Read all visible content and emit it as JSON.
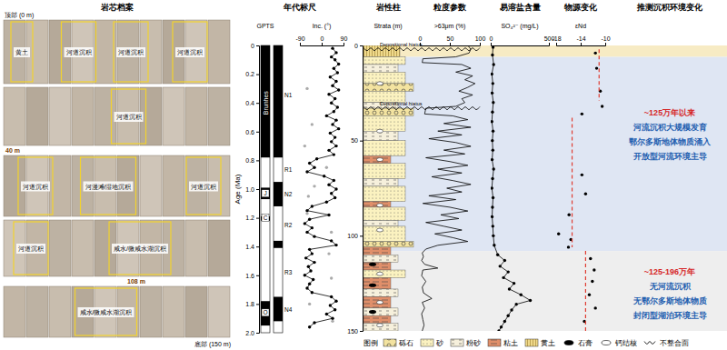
{
  "chart_data": [
    {
      "type": "line",
      "title": "年代标尺",
      "xlabel": "Inc. (°)",
      "ylabel": "Age (Ma)",
      "xlim": [
        -90,
        90
      ],
      "xticks": [
        -90,
        0,
        90
      ],
      "ylim": [
        0,
        2
      ],
      "yticks": [
        0,
        0.2,
        0.4,
        0.6,
        0.8,
        {
          "value": 1,
          "label": "1.0"
        },
        1.2,
        1.4,
        1.6,
        1.8,
        {
          "value": 2,
          "label": "2.0"
        }
      ],
      "gpts": {
        "label": "GPTS",
        "normal": [
          [
            0,
            0.78
          ],
          [
            0.99,
            1.07
          ],
          [
            1.19,
            1.22
          ],
          [
            1.78,
            1.95
          ]
        ],
        "chrons": [
          {
            "text": "Brunhes",
            "age": 0.4
          },
          {
            "text": "J",
            "age": 1.03
          },
          {
            "text": "C",
            "age": 1.2
          },
          {
            "text": "O",
            "age": 1.86
          }
        ]
      },
      "polarity": {
        "normal": [
          [
            0,
            0.78
          ],
          [
            0.95,
            1.12
          ],
          [
            1.36,
            1.41
          ],
          [
            1.75,
            1.92
          ]
        ],
        "zones": [
          {
            "text": "N1",
            "age": 0.35
          },
          {
            "text": "R1",
            "age": 0.87
          },
          {
            "text": "N2",
            "age": 1.04
          },
          {
            "text": "R2",
            "age": 1.25
          },
          {
            "text": "R3",
            "age": 1.58
          },
          {
            "text": "N4",
            "age": 1.84
          }
        ]
      },
      "series": [
        {
          "color": "#000000",
          "line_style": "solid",
          "marker": "circle",
          "y": [
            0.02,
            0.05,
            0.08,
            0.1,
            0.13,
            0.16,
            0.19,
            0.22,
            0.25,
            0.28,
            0.31,
            0.34,
            0.37,
            0.4,
            0.43,
            0.46,
            0.49,
            0.52,
            0.55,
            0.58,
            0.61,
            0.64,
            0.67,
            0.7,
            0.73,
            0.76,
            0.79,
            0.82,
            0.85,
            0.88,
            0.91,
            0.94,
            0.97,
            1.0,
            1.03,
            1.06,
            1.09,
            1.12,
            1.15,
            1.18,
            1.21,
            1.24,
            1.27,
            1.3,
            1.33,
            1.36,
            1.39,
            1.42,
            1.45,
            1.48,
            1.51,
            1.54,
            1.57,
            1.6,
            1.63,
            1.66,
            1.69,
            1.72,
            1.75,
            1.78,
            1.81,
            1.84,
            1.87,
            1.9,
            1.93,
            1.96
          ],
          "x": [
            45,
            60,
            40,
            55,
            70,
            50,
            65,
            35,
            60,
            45,
            70,
            30,
            55,
            40,
            65,
            50,
            20,
            60,
            45,
            70,
            35,
            55,
            40,
            60,
            30,
            50,
            -20,
            -50,
            -30,
            -60,
            10,
            50,
            30,
            60,
            40,
            55,
            20,
            -40,
            -60,
            30,
            -50,
            -70,
            -40,
            -60,
            -30,
            40,
            60,
            -50,
            -40,
            -65,
            -30,
            -55,
            -45,
            -70,
            -35,
            -50,
            -60,
            -40,
            40,
            60,
            35,
            55,
            20,
            45,
            -30,
            -50
          ]
        },
        {
          "color": "#aaaaaa",
          "line_style": "none",
          "marker": "circle",
          "y": [
            0.3,
            0.55,
            0.7,
            0.85,
            0.98,
            1.05,
            1.17,
            1.3,
            1.45,
            1.62,
            1.8,
            1.92
          ],
          "x": [
            -60,
            -40,
            -70,
            20,
            -30,
            -55,
            -60,
            40,
            30,
            40,
            -50,
            45
          ]
        }
      ]
    },
    {
      "type": "lithology",
      "title": "岩性柱",
      "ylabel": "Strata (m)",
      "ylim": [
        0,
        150
      ],
      "yticks": [
        0,
        50,
        100,
        150
      ],
      "layers": [
        {
          "top": 0,
          "bottom": 6,
          "lith": "黄土"
        },
        {
          "top": 6,
          "bottom": 10,
          "lith": "砂"
        },
        {
          "top": 10,
          "bottom": 14,
          "lith": "粉砂"
        },
        {
          "top": 14,
          "bottom": 20,
          "lith": "砂"
        },
        {
          "top": 20,
          "bottom": 24,
          "lith": "砾石"
        },
        {
          "top": 24,
          "bottom": 30,
          "lith": "砂"
        },
        {
          "top": 30,
          "bottom": 33,
          "lith": "粉砂"
        },
        {
          "top": 33,
          "bottom": 37,
          "lith": "砾石"
        },
        {
          "top": 37,
          "bottom": 45,
          "lith": "砂"
        },
        {
          "top": 45,
          "bottom": 50,
          "lith": "粉砂"
        },
        {
          "top": 50,
          "bottom": 58,
          "lith": "砂"
        },
        {
          "top": 58,
          "bottom": 62,
          "lith": "粘土"
        },
        {
          "top": 62,
          "bottom": 70,
          "lith": "砂"
        },
        {
          "top": 70,
          "bottom": 74,
          "lith": "粉砂"
        },
        {
          "top": 74,
          "bottom": 82,
          "lith": "砂"
        },
        {
          "top": 82,
          "bottom": 85,
          "lith": "粘土"
        },
        {
          "top": 85,
          "bottom": 92,
          "lith": "砂"
        },
        {
          "top": 92,
          "bottom": 95,
          "lith": "粉砂"
        },
        {
          "top": 95,
          "bottom": 103,
          "lith": "砂"
        },
        {
          "top": 103,
          "bottom": 106,
          "lith": "砾石"
        },
        {
          "top": 106,
          "bottom": 110,
          "lith": "粘土"
        },
        {
          "top": 110,
          "bottom": 114,
          "lith": "粉砂"
        },
        {
          "top": 114,
          "bottom": 118,
          "lith": "粘土"
        },
        {
          "top": 118,
          "bottom": 122,
          "lith": "砂"
        },
        {
          "top": 122,
          "bottom": 128,
          "lith": "粘土"
        },
        {
          "top": 128,
          "bottom": 132,
          "lith": "粉砂"
        },
        {
          "top": 132,
          "bottom": 138,
          "lith": "粘土"
        },
        {
          "top": 138,
          "bottom": 142,
          "lith": "粉砂"
        },
        {
          "top": 142,
          "bottom": 146,
          "lith": "粘土"
        },
        {
          "top": 146,
          "bottom": 150,
          "lith": "粉砂"
        }
      ],
      "unconformities": [
        {
          "depth": 2,
          "label": "Depositional hiatus"
        },
        {
          "depth": 33,
          "label": "Depositional hiatus"
        }
      ],
      "gypsum": [
        115,
        126,
        140
      ],
      "nodules": [
        20,
        45,
        60,
        84,
        97,
        120,
        135,
        147
      ]
    },
    {
      "type": "line",
      "title": "粒度参数",
      "xlabel": ">63μm (%)",
      "xlim": [
        0,
        100
      ],
      "xticks": [
        0,
        50,
        100
      ],
      "ylim": [
        0,
        150
      ],
      "series": [
        {
          "color": "#000000",
          "line_style": "solid",
          "marker": "none",
          "y": [
            0,
            2,
            4,
            6,
            7,
            9,
            10,
            12,
            14,
            16,
            18,
            20,
            22,
            24,
            26,
            28,
            30,
            32,
            33,
            36,
            37,
            39,
            41,
            43,
            45,
            47,
            49,
            51,
            53,
            55,
            57,
            59,
            61,
            63,
            65,
            67,
            69,
            71,
            73,
            75,
            77,
            79,
            81,
            83,
            85,
            87,
            89,
            91,
            93,
            95,
            97,
            99,
            101,
            103,
            105,
            107,
            109,
            111,
            113,
            115,
            117,
            118,
            121,
            124,
            127,
            130,
            133,
            135,
            138,
            141,
            144,
            147,
            150
          ],
          "x": [
            80,
            85,
            82,
            60,
            5,
            4,
            70,
            85,
            60,
            88,
            75,
            92,
            80,
            65,
            88,
            70,
            75,
            60,
            10,
            8,
            55,
            80,
            40,
            85,
            30,
            70,
            15,
            60,
            85,
            40,
            75,
            10,
            50,
            80,
            30,
            70,
            20,
            55,
            85,
            45,
            70,
            15,
            60,
            5,
            50,
            80,
            35,
            65,
            10,
            40,
            70,
            25,
            55,
            80,
            30,
            10,
            4,
            6,
            3,
            8,
            30,
            5,
            3,
            10,
            4,
            6,
            20,
            4,
            8,
            3,
            5,
            7,
            4
          ]
        }
      ]
    },
    {
      "type": "line",
      "title": "易溶盐含量",
      "xlabel": "SO₄²⁻ (mg/L)",
      "xlim": [
        0,
        500
      ],
      "xticks": [
        0,
        500
      ],
      "ylim": [
        0,
        150
      ],
      "series": [
        {
          "color": "#000000",
          "line_style": "solid",
          "marker": "circle",
          "y": [
            1,
            5,
            10,
            15,
            20,
            25,
            30,
            35,
            40,
            45,
            50,
            55,
            60,
            65,
            70,
            75,
            80,
            85,
            90,
            95,
            100,
            105,
            110,
            113,
            116,
            119,
            122,
            125,
            128,
            131,
            134,
            136,
            139,
            142,
            145,
            148,
            150
          ],
          "x": [
            20,
            15,
            25,
            10,
            18,
            12,
            22,
            15,
            10,
            20,
            14,
            18,
            12,
            25,
            16,
            10,
            20,
            15,
            12,
            18,
            22,
            30,
            60,
            120,
            80,
            150,
            110,
            200,
            160,
            260,
            340,
            220,
            180,
            150,
            120,
            90,
            70
          ]
        }
      ]
    },
    {
      "type": "scatter",
      "title": "物源变化",
      "xlabel": "εNd",
      "xlim": [
        -18,
        -10
      ],
      "xticks": [
        -18,
        -14,
        -10
      ],
      "ylim": [
        0,
        150
      ],
      "series": [
        {
          "color": "#000000",
          "line_style": "none",
          "marker": "circle",
          "y": [
            4,
            12,
            24,
            32,
            36,
            68,
            78,
            89,
            99,
            102,
            106,
            112,
            118,
            124,
            131,
            138,
            145
          ],
          "x": [
            -11.6,
            -11.4,
            -10.8,
            -10.5,
            -13.8,
            -13.8,
            -13.2,
            -15.9,
            -17.6,
            -15.6,
            -16.0,
            -12.4,
            -11.8,
            -12.1,
            -12.6,
            -11.6,
            -13.4
          ]
        },
        {
          "color": "#e03c31",
          "line_style": "dashed",
          "marker": "none",
          "y": [
            2,
            29
          ],
          "x": [
            -11,
            -11
          ]
        },
        {
          "color": "#e03c31",
          "line_style": "dashed",
          "marker": "none",
          "y": [
            38,
            106
          ],
          "x": [
            -15.4,
            -15.4
          ]
        },
        {
          "color": "#e03c31",
          "line_style": "dashed",
          "marker": "none",
          "y": [
            108,
            150
          ],
          "x": [
            -13.2,
            -13.2
          ]
        }
      ]
    }
  ],
  "core_archive": {
    "title": "岩芯档案",
    "top_label": "顶部 (0 m)",
    "bottom_label": "底部 (150 m)",
    "depth_marks": [
      "40 m",
      "108 m"
    ],
    "rows": [
      {
        "labels": [
          "黄土",
          "河道沉积",
          "河道沉积",
          "河道沉积"
        ]
      },
      {
        "labels": [
          "河道沉积"
        ]
      },
      {
        "labels": [
          "河道沉积",
          "河漫滩/湿地沉积",
          "河道沉积"
        ]
      },
      {
        "labels": [
          "河道沉积",
          "咸水/微咸水湖沉积"
        ]
      },
      {
        "labels": [
          "咸水/微咸水湖沉积"
        ]
      }
    ]
  },
  "interpretation": {
    "title": "推测沉积环境变化",
    "blocks": [
      {
        "top": 0,
        "bottom": 6,
        "color": "#f7ebc4"
      },
      {
        "top": 6,
        "bottom": 108,
        "color": "#dfe6f3",
        "title": "~125万年以来",
        "lines": [
          "河流沉积大规模发育",
          "鄂尔多斯地体物质涌入",
          "开放型河流环境主导"
        ]
      },
      {
        "top": 108,
        "bottom": 150,
        "color": "#eeeeee",
        "title": "~125-196万年",
        "lines": [
          "无河流沉积",
          "无鄂尔多斯地体物质",
          "封闭型湖泊环境主导"
        ]
      }
    ]
  },
  "legend": {
    "title": "图例",
    "items": [
      {
        "name": "砾石",
        "color": "#f3e3a0",
        "marker": "circles"
      },
      {
        "name": "砂",
        "color": "#fbf2c0",
        "marker": "dots"
      },
      {
        "name": "粉砂",
        "color": "#f6f0dc",
        "marker": "dashes"
      },
      {
        "name": "粘土",
        "color": "#e08f6a",
        "marker": "long-dashes"
      },
      {
        "name": "黄土",
        "color": "#efd98b",
        "marker": "vlines"
      },
      {
        "name": "石膏",
        "color": "#000000",
        "marker": "gypsum"
      },
      {
        "name": "钙结核",
        "color": "#ffffff",
        "marker": "nodule"
      },
      {
        "name": "不整合面",
        "color": "#000000",
        "marker": "wavy"
      }
    ]
  }
}
